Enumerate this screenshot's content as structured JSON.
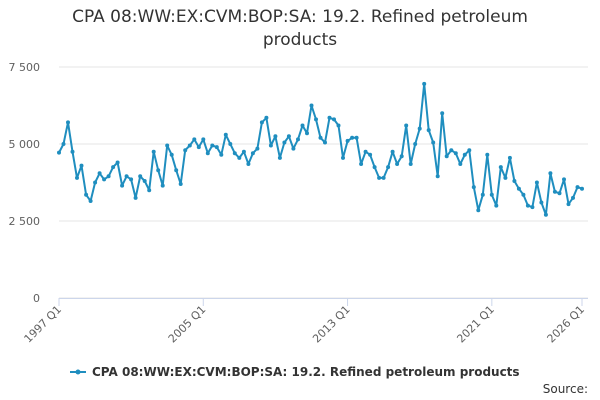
{
  "chart_data": {
    "type": "line",
    "title_line1": "CPA 08:WW:EX:CVM:BOP:SA: 19.2. Refined petroleum",
    "title_line2": "products",
    "x_start": "1997 Q1",
    "x_end": "2026 Q1",
    "x_ticks": [
      "1997 Q1",
      "2005 Q1",
      "2013 Q1",
      "2021 Q1",
      "2026 Q1"
    ],
    "y_ticks": [
      "0",
      "2 500",
      "5 000",
      "7 500"
    ],
    "ylim": [
      0,
      7500
    ],
    "grid": true,
    "legend_position": "bottom",
    "series": [
      {
        "name": "CPA 08:WW:EX:CVM:BOP:SA: 19.2. Refined petroleum products",
        "color": "#1f8ebf",
        "values": [
          4720,
          5000,
          5700,
          4750,
          3900,
          4300,
          3350,
          3150,
          3750,
          4050,
          3850,
          3950,
          4250,
          4400,
          3650,
          3950,
          3850,
          3250,
          3950,
          3800,
          3500,
          4750,
          4150,
          3650,
          4950,
          4650,
          4150,
          3700,
          4800,
          4950,
          5150,
          4900,
          5150,
          4700,
          4950,
          4900,
          4650,
          5300,
          5000,
          4700,
          4550,
          4750,
          4350,
          4700,
          4850,
          5700,
          5850,
          4950,
          5250,
          4550,
          5050,
          5250,
          4850,
          5150,
          5600,
          5350,
          6250,
          5800,
          5200,
          5050,
          5850,
          5800,
          5600,
          4550,
          5100,
          5200,
          5200,
          4350,
          4750,
          4650,
          4250,
          3900,
          3900,
          4250,
          4750,
          4350,
          4600,
          5600,
          4350,
          5000,
          5500,
          6950,
          5450,
          5050,
          3950,
          6000,
          4600,
          4800,
          4700,
          4350,
          4650,
          4800,
          3600,
          2850,
          3350,
          4650,
          3350,
          3000,
          4250,
          3900,
          4550,
          3800,
          3550,
          3350,
          3000,
          2950,
          3750,
          3100,
          2700,
          4050,
          3450,
          3400,
          3850,
          3050,
          3250,
          3600,
          3550
        ]
      }
    ]
  },
  "footer": {
    "source_label": "Source:"
  }
}
